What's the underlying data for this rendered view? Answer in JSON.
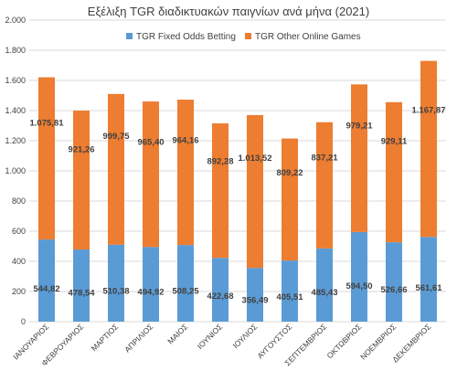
{
  "chart_data": {
    "type": "bar",
    "stacked": true,
    "title": "Εξέλιξη TGR διαδικτυακών παιγνίων ανά μήνα (2021)",
    "categories": [
      "ΙΑΝΟΥΑΡΙΟΣ",
      "ΦΕΒΡΟΥΑΡΙΟΣ",
      "ΜΑΡΤΙΟΣ",
      "ΑΠΡΙΛΙΟΣ",
      "ΜΑΙΟΣ",
      "ΙΟΥΝΙΟΣ",
      "ΙΟΥΛΙΟΣ",
      "ΑΥΓΟΥΣΤΟΣ",
      "ΣΕΠΤΕΜΒΡΙΟΣ",
      "ΟΚΤΩΒΡΙΟΣ",
      "ΝΟΕΜΒΡΙΟΣ",
      "ΔΕΚΕΜΒΡΙΟΣ"
    ],
    "series": [
      {
        "name": "TGR Fixed Odds Betting",
        "color": "#5b9bd5",
        "values": [
          544.82,
          478.54,
          510.38,
          494.92,
          508.25,
          422.68,
          356.49,
          405.51,
          485.43,
          594.5,
          526.66,
          561.61
        ],
        "labels": [
          "544,82",
          "478,54",
          "510,38",
          "494,92",
          "508,25",
          "422,68",
          "356,49",
          "405,51",
          "485,43",
          "594,50",
          "526,66",
          "561,61"
        ]
      },
      {
        "name": "TGR Other Online Games",
        "color": "#ed7d31",
        "values": [
          1075.81,
          921.26,
          999.75,
          965.4,
          964.16,
          892.28,
          1013.52,
          809.22,
          837.21,
          979.21,
          929.11,
          1167.87
        ],
        "labels": [
          "1.075,81",
          "921,26",
          "999,75",
          "965,40",
          "964,16",
          "892,28",
          "1.013,52",
          "809,22",
          "837,21",
          "979,21",
          "929,11",
          "1.167,87"
        ]
      }
    ],
    "ylim": [
      0,
      2000
    ],
    "yticks": [
      0,
      200,
      400,
      600,
      800,
      1000,
      1200,
      1400,
      1600,
      1800,
      2000
    ],
    "ytick_labels": [
      "0",
      "200",
      "400",
      "600",
      "800",
      "1.000",
      "1.200",
      "1.400",
      "1.600",
      "1.800",
      "2.000"
    ],
    "grid": true,
    "legend_position": "top"
  }
}
